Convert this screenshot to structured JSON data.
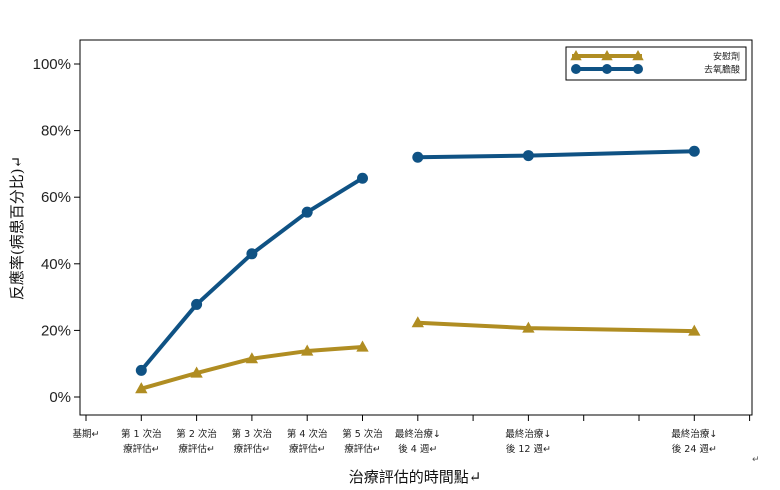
{
  "chart_data": {
    "type": "line",
    "title": "",
    "xlabel": "治療評估的時間點↵",
    "ylabel": "反應率(病患百分比)↵",
    "ylim": [
      0,
      1.0
    ],
    "yticks": [
      "0%",
      "20%",
      "40%",
      "60%",
      "80%",
      "100%"
    ],
    "categories": [
      [
        "基期↵",
        ""
      ],
      [
        "第 1 次治",
        "療評估↵"
      ],
      [
        "第 2 次治",
        "療評估↵"
      ],
      [
        "第 3 次治",
        "療評估↵"
      ],
      [
        "第 4 次治",
        "療評估↵"
      ],
      [
        "第 5 次治",
        "療評估↵"
      ],
      [
        "最終治療↓",
        "後 4 週↵"
      ],
      [
        "最終治療↓",
        "後 12 週↵"
      ],
      [
        "最終治療↓",
        "後 24 週↵"
      ]
    ],
    "x_weeks": [
      0,
      1,
      2,
      3,
      4,
      5,
      6,
      8,
      11
    ],
    "segments": [
      [
        1,
        2,
        3,
        4,
        5
      ],
      [
        6,
        7,
        8
      ]
    ],
    "grid": false,
    "legend_position": "top-right",
    "series": [
      {
        "name": "安慰劑",
        "color": "#B08D22",
        "marker": "triangle",
        "values": [
          null,
          0.025,
          0.072,
          0.115,
          0.138,
          0.15,
          0.223,
          0.207,
          0.198
        ]
      },
      {
        "name": "去氧膽酸",
        "color": "#0F5284",
        "marker": "circle",
        "values": [
          null,
          0.08,
          0.278,
          0.43,
          0.555,
          0.657,
          0.72,
          0.725,
          0.738
        ]
      }
    ],
    "stray_mark": "↵"
  }
}
